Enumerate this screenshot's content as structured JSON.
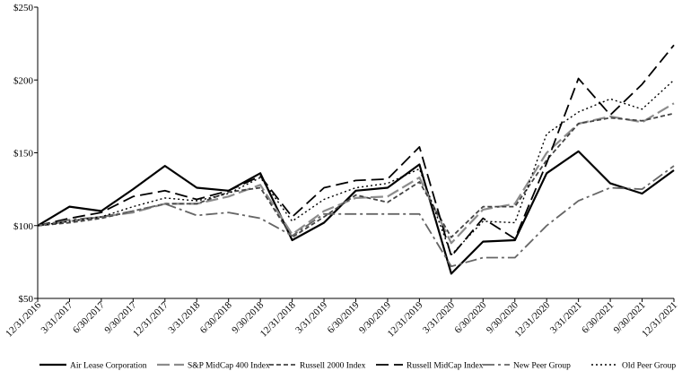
{
  "chart_data": {
    "type": "line",
    "title": "",
    "xlabel": "",
    "ylabel": "",
    "ylim": [
      50,
      250
    ],
    "y_ticks": [
      "$50",
      "$100",
      "$150",
      "$200",
      "$250"
    ],
    "y_tick_values": [
      50,
      100,
      150,
      200,
      250
    ],
    "grid": false,
    "legend_position": "bottom",
    "categories": [
      "12/31/2016",
      "3/31/2017",
      "6/30/2017",
      "9/30/2017",
      "12/31/2017",
      "3/31/2018",
      "6/30/2018",
      "9/30/2018",
      "12/31/2018",
      "3/31/2019",
      "6/30/2019",
      "9/30/2019",
      "12/31/2019",
      "3/31/2020",
      "6/30/2020",
      "9/30/2020",
      "12/31/2020",
      "3/31/2021",
      "6/30/2021",
      "9/30/2021",
      "12/31/2021"
    ],
    "series": [
      {
        "name": "Air Lease Corporation",
        "color": "#000000",
        "dash": "",
        "width": 2.2,
        "values": [
          100,
          113,
          110,
          125,
          141,
          126,
          124,
          136,
          90,
          102,
          124,
          126,
          142,
          67,
          89,
          90,
          136,
          151,
          129,
          122,
          138
        ]
      },
      {
        "name": "S&P MidCap 400 Index",
        "color": "#8c8c8c",
        "dash": "14 5",
        "width": 2.2,
        "values": [
          100,
          103,
          106,
          109,
          115,
          115,
          120,
          128,
          94,
          110,
          119,
          120,
          133,
          88,
          111,
          115,
          150,
          170,
          175,
          171,
          184
        ]
      },
      {
        "name": "Russell 2000 Index",
        "color": "#444444",
        "dash": "5 3",
        "width": 1.8,
        "values": [
          100,
          102,
          105,
          110,
          115,
          115,
          123,
          126,
          92,
          106,
          121,
          116,
          130,
          92,
          113,
          113,
          145,
          170,
          174,
          172,
          177
        ]
      },
      {
        "name": "Russell MidCap Index",
        "color": "#000000",
        "dash": "14 6",
        "width": 1.8,
        "values": [
          100,
          105,
          109,
          120,
          124,
          118,
          124,
          134,
          106,
          126,
          131,
          132,
          154,
          79,
          105,
          91,
          143,
          201,
          176,
          197,
          224
        ]
      },
      {
        "name": "New Peer Group",
        "color": "#666666",
        "dash": "13 4 3 4",
        "width": 1.8,
        "values": [
          100,
          104,
          106,
          110,
          115,
          107,
          109,
          105,
          93,
          108,
          108,
          108,
          108,
          72,
          78,
          78,
          100,
          117,
          126,
          125,
          141
        ]
      },
      {
        "name": "Old Peer Group",
        "color": "#000000",
        "dash": "2 3",
        "width": 1.4,
        "values": [
          100,
          103,
          106,
          113,
          119,
          117,
          122,
          133,
          103,
          118,
          126,
          129,
          139,
          80,
          103,
          102,
          163,
          178,
          187,
          180,
          200
        ]
      }
    ]
  }
}
